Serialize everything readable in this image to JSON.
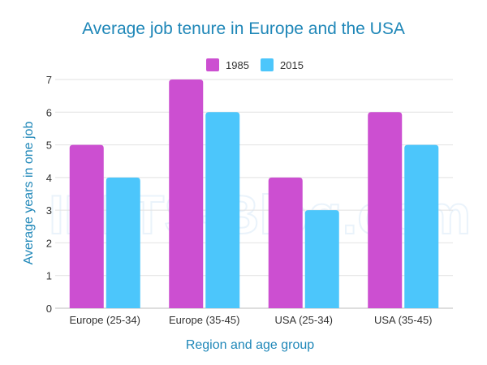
{
  "chart_data": {
    "type": "bar",
    "title": "Average job tenure in Europe and the USA",
    "xlabel": "Region and age group",
    "ylabel": "Average years in one job",
    "categories": [
      "Europe (25-34)",
      "Europe (35-45)",
      "USA (25-34)",
      "USA (35-45)"
    ],
    "series": [
      {
        "name": "1985",
        "values": [
          5,
          7,
          4,
          6
        ],
        "color": "#cc4fd1"
      },
      {
        "name": "2015",
        "values": [
          4,
          6,
          3,
          5
        ],
        "color": "#4cc6fb"
      }
    ],
    "ylim": [
      0,
      7
    ],
    "yticks": [
      0,
      1,
      2,
      3,
      4,
      5,
      6,
      7
    ],
    "grid": true,
    "legend": "top-center",
    "watermark": "IELTS-Blog.com"
  }
}
